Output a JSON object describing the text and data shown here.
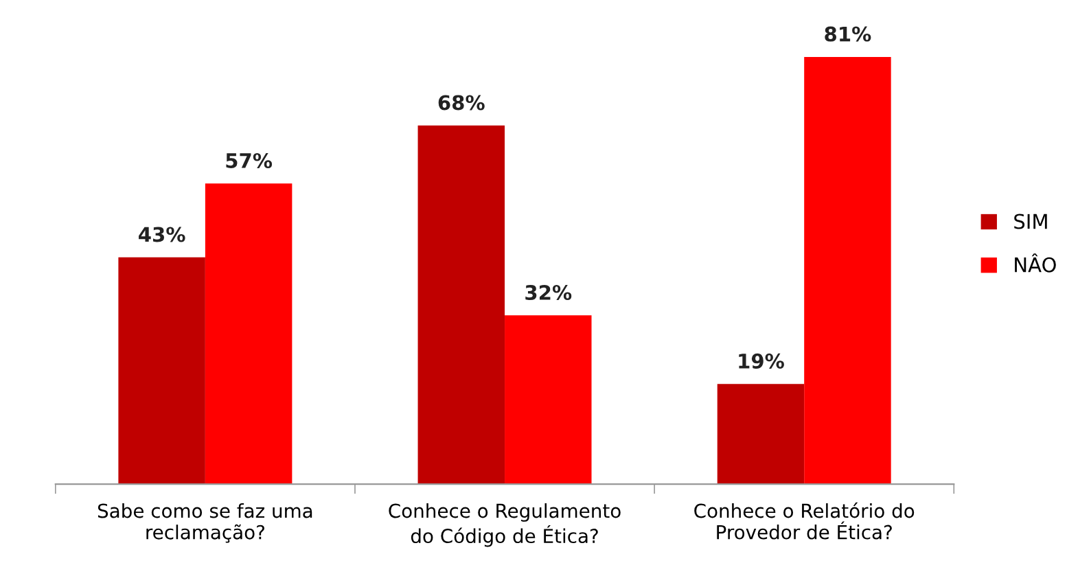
{
  "chart_data": {
    "type": "bar",
    "categories": [
      "Sabe como se faz uma\nreclamação?",
      "Conhece o Regulamento\ndo Código de Ética?",
      "Conhece o Relatório do\nProvedor de Ética?"
    ],
    "series": [
      {
        "name": "SIM",
        "color": "#c00000",
        "values": [
          43,
          68,
          19
        ],
        "value_labels": [
          "43%",
          "68%",
          "19%"
        ]
      },
      {
        "name": "NÂO",
        "color": "#ff0000",
        "values": [
          57,
          32,
          81
        ],
        "value_labels": [
          "57%",
          "32%",
          "81%"
        ]
      }
    ],
    "legend": "right",
    "grid": false
  }
}
